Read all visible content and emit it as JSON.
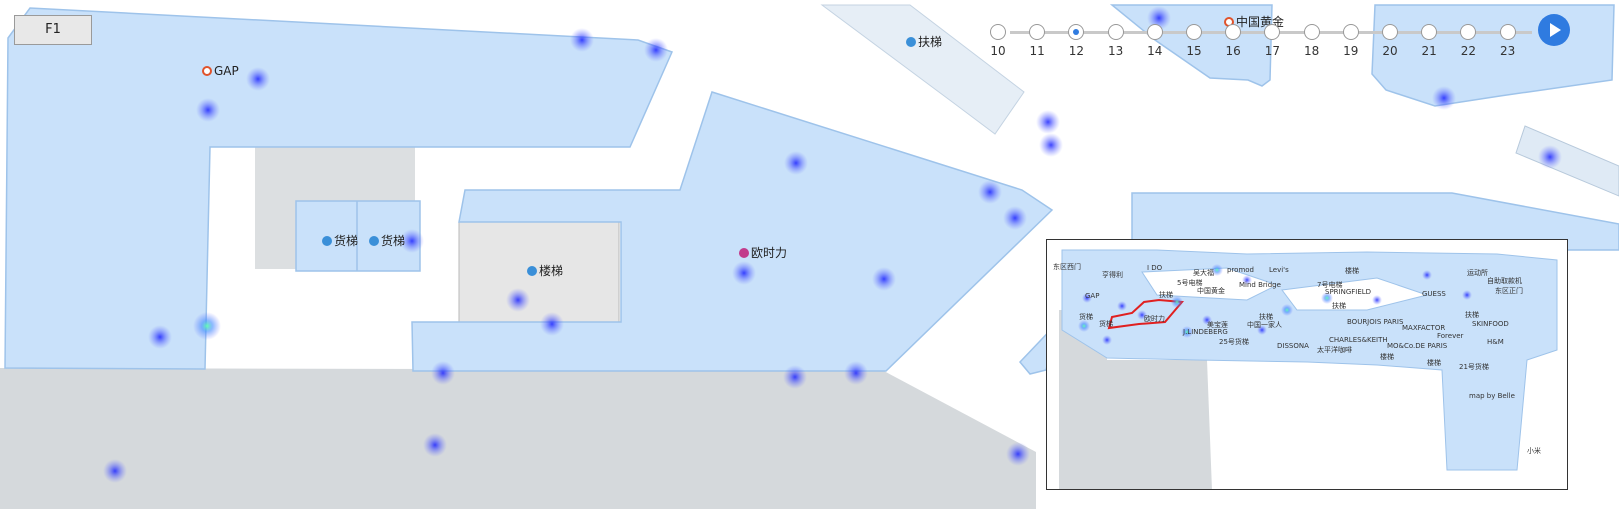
{
  "floor_selector": {
    "current": "F1"
  },
  "timeline": {
    "hours": [
      "10",
      "11",
      "12",
      "13",
      "14",
      "15",
      "16",
      "17",
      "18",
      "19",
      "20",
      "21",
      "22",
      "23"
    ],
    "active_hour": "12"
  },
  "map_labels": {
    "gap": "GAP",
    "cargo_elevator_1": "货梯",
    "cargo_elevator_2": "货梯",
    "stairs": "楼梯",
    "oushili": "欧时力",
    "escalator": "扶梯",
    "china_gold": "中国黄金"
  },
  "overview_labels": [
    "东区西门",
    "亨得利",
    "I DO",
    "吴大福",
    "promod",
    "Levi's",
    "楼梯",
    "运动所",
    "自助取款机",
    "东区正门",
    "GAP",
    "扶梯",
    "5号电梯",
    "中国黄金",
    "Mind Bridge",
    "7号电梯",
    "SPRINGFIELD",
    "GUESS",
    "货梯",
    "货梯",
    "欧时力",
    "扶梯",
    "扶梯",
    "BOURJOIS PARIS",
    "SKINFOOD",
    "扶梯",
    "美宝莲",
    "中国一家人",
    "MAXFACTOR",
    "Forever",
    "H&M",
    "J.LINDEBERG",
    "25号货梯",
    "CHARLES&KEITH",
    "MO&Co.DE PARIS",
    "楼梯",
    "DISSONA",
    "太平洋咖啡",
    "21号货梯",
    "map by Belle",
    "楼梯",
    "小米"
  ],
  "colors": {
    "store_fill": "#c9e1fa",
    "store_stroke": "#9ec3ea",
    "void_fill": "#d8dcdf",
    "heat_blue": "#2f3cff",
    "heat_green": "#3fd28a",
    "selection_outline": "#e02020",
    "accent": "#2f7be0"
  }
}
